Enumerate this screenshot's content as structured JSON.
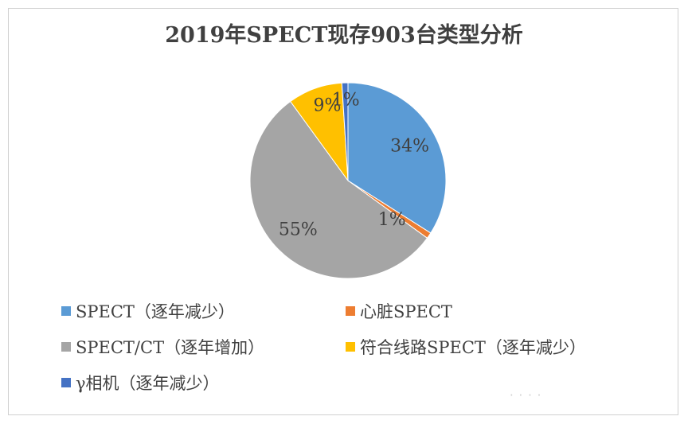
{
  "chart_data": {
    "type": "pie",
    "title": "2019年SPECT现存903台类型分析",
    "slices": [
      {
        "name": "SPECT（逐年减少）",
        "value": 34,
        "label": "34%",
        "color": "#5b9bd5"
      },
      {
        "name": "心脏SPECT",
        "value": 1,
        "label": "1%",
        "color": "#ed7d31"
      },
      {
        "name": "SPECT/CT（逐年增加）",
        "value": 55,
        "label": "55%",
        "color": "#a5a5a5"
      },
      {
        "name": "符合线路SPECT（逐年减少）",
        "value": 9,
        "label": "9%",
        "color": "#ffc000"
      },
      {
        "name": "γ相机（逐年减少）",
        "value": 1,
        "label": "1%",
        "color": "#4472c4"
      }
    ],
    "legend_position": "bottom"
  },
  "watermark": "· · · ·"
}
